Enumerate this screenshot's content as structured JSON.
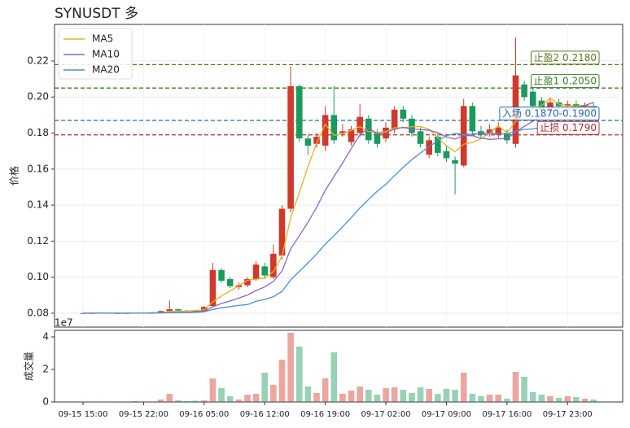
{
  "chart_data": {
    "type": "candlestick",
    "title": "SYNUSDT 多",
    "ylabel": "价格",
    "categories": [
      "09-15 15:00",
      null,
      null,
      null,
      null,
      null,
      null,
      "09-15 22:00",
      null,
      null,
      null,
      null,
      null,
      null,
      "09-16 05:00",
      null,
      null,
      null,
      null,
      null,
      null,
      "09-16 12:00",
      null,
      null,
      null,
      null,
      null,
      null,
      "09-16 19:00",
      null,
      null,
      null,
      null,
      null,
      null,
      "09-17 02:00",
      null,
      null,
      null,
      null,
      null,
      null,
      "09-17 09:00",
      null,
      null,
      null,
      null,
      null,
      null,
      "09-17 16:00",
      null,
      null,
      null,
      null,
      null,
      null,
      "09-17 23:00",
      null,
      null,
      null
    ],
    "open": [
      0.08,
      0.08,
      0.08,
      0.0802,
      0.0798,
      0.08,
      0.0799,
      0.0801,
      0.0803,
      0.0805,
      0.0812,
      0.0822,
      0.0815,
      0.0813,
      0.0812,
      0.084,
      0.104,
      0.099,
      0.0945,
      0.0955,
      0.099,
      0.106,
      0.1,
      0.112,
      0.138,
      0.206,
      0.177,
      0.174,
      0.173,
      0.19,
      0.18,
      0.175,
      0.18,
      0.188,
      0.18,
      0.177,
      0.182,
      0.193,
      0.188,
      0.181,
      0.168,
      0.178,
      0.17,
      0.165,
      0.162,
      0.195,
      0.181,
      0.18,
      0.179,
      0.18,
      0.174,
      0.207,
      0.203,
      0.198,
      0.193,
      0.197,
      0.195,
      0.196,
      0.194,
      0.195
    ],
    "high": [
      0.0802,
      0.0802,
      0.0803,
      0.0803,
      0.0801,
      0.0801,
      0.0802,
      0.0805,
      0.0807,
      0.0815,
      0.087,
      0.0825,
      0.0818,
      0.0816,
      0.084,
      0.108,
      0.105,
      0.1,
      0.097,
      0.1,
      0.109,
      0.108,
      0.118,
      0.14,
      0.217,
      0.207,
      0.179,
      0.18,
      0.195,
      0.206,
      0.185,
      0.184,
      0.196,
      0.19,
      0.182,
      0.186,
      0.195,
      0.195,
      0.19,
      0.183,
      0.178,
      0.18,
      0.173,
      0.167,
      0.199,
      0.197,
      0.184,
      0.185,
      0.186,
      0.182,
      0.233,
      0.209,
      0.205,
      0.2,
      0.199,
      0.199,
      0.198,
      0.198,
      0.197,
      0.197
    ],
    "low": [
      0.0798,
      0.0797,
      0.0798,
      0.0796,
      0.0796,
      0.0797,
      0.0798,
      0.0799,
      0.0801,
      0.0803,
      0.0808,
      0.0812,
      0.081,
      0.0809,
      0.081,
      0.0835,
      0.097,
      0.094,
      0.093,
      0.0945,
      0.098,
      0.099,
      0.099,
      0.11,
      0.136,
      0.175,
      0.168,
      0.172,
      0.17,
      0.174,
      0.178,
      0.173,
      0.178,
      0.174,
      0.172,
      0.175,
      0.18,
      0.186,
      0.178,
      0.172,
      0.166,
      0.167,
      0.164,
      0.146,
      0.161,
      0.179,
      0.177,
      0.178,
      0.177,
      0.174,
      0.172,
      0.198,
      0.193,
      0.191,
      0.191,
      0.193,
      0.193,
      0.192,
      0.192,
      0.191
    ],
    "close": [
      0.08,
      0.08,
      0.0802,
      0.0798,
      0.08,
      0.0799,
      0.0801,
      0.0803,
      0.0805,
      0.0812,
      0.0822,
      0.0815,
      0.0813,
      0.0812,
      0.0835,
      0.104,
      0.098,
      0.095,
      0.0955,
      0.099,
      0.107,
      0.101,
      0.113,
      0.138,
      0.206,
      0.177,
      0.173,
      0.178,
      0.19,
      0.176,
      0.181,
      0.182,
      0.189,
      0.176,
      0.174,
      0.183,
      0.193,
      0.188,
      0.18,
      0.174,
      0.176,
      0.169,
      0.166,
      0.163,
      0.195,
      0.181,
      0.179,
      0.182,
      0.183,
      0.176,
      0.212,
      0.2,
      0.195,
      0.193,
      0.197,
      0.195,
      0.196,
      0.194,
      0.195,
      0.193
    ],
    "up_color": "#d0392b",
    "down_color": "#1a9a5c",
    "ylim": [
      0.0723,
      0.2403
    ],
    "yticks": [
      0.08,
      {
        "value": 0.1,
        "label": "0.10"
      },
      0.12,
      0.14,
      0.16,
      0.18,
      {
        "value": 0.2,
        "label": "0.20"
      },
      0.22
    ],
    "grid": true,
    "legend": "upper left",
    "series": [
      {
        "name": "MA5",
        "color": "#e8b020",
        "values": [
          0.08,
          0.08,
          0.0801,
          0.08,
          0.08,
          0.08,
          0.08,
          0.0801,
          0.0802,
          0.0804,
          0.0809,
          0.0811,
          0.0813,
          0.0815,
          0.0819,
          0.0863,
          0.0896,
          0.0923,
          0.0952,
          0.0983,
          0.0989,
          0.0995,
          0.1031,
          0.1116,
          0.133,
          0.147,
          0.1614,
          0.1744,
          0.1848,
          0.1788,
          0.1796,
          0.1814,
          0.1836,
          0.1808,
          0.1804,
          0.1808,
          0.183,
          0.1828,
          0.1836,
          0.1836,
          0.1822,
          0.1774,
          0.173,
          0.1696,
          0.1738,
          0.1748,
          0.1768,
          0.18,
          0.184,
          0.1802,
          0.1864,
          0.1906,
          0.1932,
          0.1952,
          0.1994,
          0.196,
          0.1952,
          0.195,
          0.1954,
          0.1946
        ]
      },
      {
        "name": "MA10",
        "color": "#8a66c8",
        "values": [
          0.08,
          0.08,
          0.0801,
          0.08,
          0.08,
          0.08,
          0.08,
          0.08,
          0.0801,
          0.0802,
          0.0803,
          0.0805,
          0.0806,
          0.0808,
          0.0812,
          0.0836,
          0.0854,
          0.0868,
          0.0884,
          0.0901,
          0.0926,
          0.0946,
          0.0977,
          0.1034,
          0.1157,
          0.123,
          0.1305,
          0.1388,
          0.1482,
          0.1559,
          0.1633,
          0.1714,
          0.179,
          0.1828,
          0.1796,
          0.1802,
          0.1822,
          0.1832,
          0.1822,
          0.182,
          0.1815,
          0.1802,
          0.1779,
          0.1766,
          0.1787,
          0.1785,
          0.1771,
          0.1765,
          0.1768,
          0.177,
          0.1806,
          0.1837,
          0.1866,
          0.1896,
          0.1898,
          0.1912,
          0.1929,
          0.1941,
          0.1953,
          0.197
        ]
      },
      {
        "name": "MA20",
        "color": "#4a90d0",
        "values": [
          0.08,
          0.08,
          0.0801,
          0.08,
          0.08,
          0.08,
          0.08,
          0.08,
          0.0801,
          0.0802,
          0.0803,
          0.0804,
          0.0804,
          0.0805,
          0.0808,
          0.0821,
          0.083,
          0.0837,
          0.0843,
          0.0848,
          0.0866,
          0.0876,
          0.0892,
          0.0921,
          0.0985,
          0.1033,
          0.108,
          0.1128,
          0.1183,
          0.123,
          0.128,
          0.133,
          0.1384,
          0.1431,
          0.1477,
          0.1516,
          0.1564,
          0.161,
          0.1652,
          0.169,
          0.1724,
          0.1758,
          0.1785,
          0.1797,
          0.1792,
          0.1794,
          0.1797,
          0.1799,
          0.1795,
          0.1795,
          0.1811,
          0.182,
          0.1823,
          0.1831,
          0.1843,
          0.1849,
          0.185,
          0.1853,
          0.1861,
          0.187
        ]
      }
    ],
    "levels": [
      {
        "label": "止盈2 0.2180",
        "value": 0.218,
        "color": "#4f7a1e"
      },
      {
        "label": "止盈1 0.2050",
        "value": 0.205,
        "color": "#3d7d2a"
      },
      {
        "label": "入场 0.1870-0.1900",
        "value": 0.187,
        "color": "#2a6aa8"
      },
      {
        "label": "止损 0.1790",
        "value": 0.179,
        "color": "#b03030"
      }
    ],
    "volume": {
      "ylabel": "成交量",
      "offset_label": "1e7",
      "values": [
        0.02,
        0.01,
        0.01,
        0.01,
        0.01,
        0.02,
        0.05,
        0.02,
        0.03,
        0.15,
        0.5,
        0.1,
        0.05,
        0.08,
        0.1,
        1.45,
        0.85,
        0.35,
        0.15,
        0.45,
        0.5,
        1.8,
        1.05,
        2.6,
        4.25,
        3.4,
        0.95,
        0.55,
        1.45,
        3.05,
        0.5,
        0.7,
        0.95,
        0.75,
        0.45,
        0.85,
        0.9,
        0.75,
        0.55,
        0.9,
        0.8,
        0.5,
        0.8,
        0.75,
        1.8,
        0.5,
        0.35,
        0.45,
        0.45,
        0.2,
        1.85,
        1.55,
        0.6,
        0.45,
        0.35,
        0.25,
        0.35,
        0.3,
        0.2,
        0.15
      ],
      "ylim": [
        0,
        4.4
      ],
      "yticks": [
        0,
        2,
        4
      ]
    }
  }
}
